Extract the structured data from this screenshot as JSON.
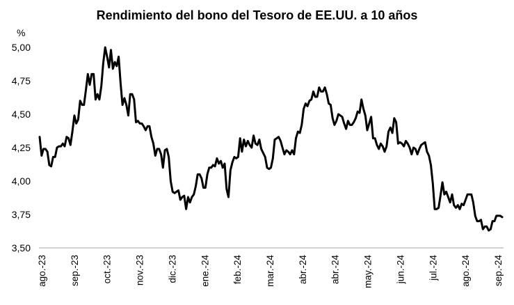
{
  "chart_data": {
    "type": "line",
    "title": "Rendimiento del bono del Tesoro de EE.UU. a 10 años",
    "y_unit": "%",
    "ylim": [
      3.5,
      5.0
    ],
    "y_ticks": [
      "3,50",
      "3,75",
      "4,00",
      "4,25",
      "4,50",
      "4,75",
      "5,00"
    ],
    "x_ticks": [
      "ago.-23",
      "sep.-23",
      "oct.-23",
      "nov.-23",
      "dic.-23",
      "ene.-24",
      "feb.-24",
      "mar.-24",
      "abr.-24",
      "abr.-24",
      "may.-24",
      "jun.-24",
      "jul.-24",
      "ago.-24",
      "sep.-24"
    ],
    "grid": false,
    "legend": "none",
    "series": [
      {
        "color": "#000000",
        "values": [
          4.33,
          4.19,
          4.24,
          4.24,
          4.22,
          4.12,
          4.11,
          4.18,
          4.18,
          4.25,
          4.26,
          4.26,
          4.28,
          4.26,
          4.33,
          4.32,
          4.27,
          4.37,
          4.49,
          4.43,
          4.46,
          4.6,
          4.57,
          4.57,
          4.68,
          4.8,
          4.72,
          4.8,
          4.8,
          4.61,
          4.65,
          4.61,
          4.71,
          4.88,
          5.0,
          4.93,
          4.85,
          4.98,
          4.84,
          4.89,
          4.86,
          4.93,
          4.73,
          4.57,
          4.62,
          4.57,
          4.49,
          4.65,
          4.65,
          4.61,
          4.44,
          4.45,
          4.43,
          4.43,
          4.41,
          4.38,
          4.41,
          4.41,
          4.33,
          4.28,
          4.19,
          4.24,
          4.24,
          4.2,
          4.1,
          4.23,
          4.24,
          4.18,
          4.0,
          3.92,
          3.91,
          3.92,
          3.93,
          3.86,
          3.88,
          3.89,
          3.79,
          3.88,
          3.84,
          3.88,
          3.9,
          3.96,
          4.05,
          4.05,
          4.02,
          3.95,
          3.95,
          4.05,
          4.1,
          4.1,
          4.12,
          4.11,
          4.17,
          4.13,
          4.15,
          4.1,
          4.13,
          3.94,
          3.88,
          4.08,
          4.14,
          4.18,
          4.17,
          4.18,
          4.32,
          4.22,
          4.31,
          4.26,
          4.3,
          4.27,
          4.25,
          4.34,
          4.28,
          4.27,
          4.31,
          4.24,
          4.21,
          4.18,
          4.1,
          4.09,
          4.1,
          4.17,
          4.31,
          4.32,
          4.33,
          4.3,
          4.25,
          4.2,
          4.23,
          4.22,
          4.2,
          4.23,
          4.2,
          4.32,
          4.37,
          4.36,
          4.42,
          4.54,
          4.58,
          4.56,
          4.6,
          4.61,
          4.67,
          4.63,
          4.63,
          4.7,
          4.67,
          4.67,
          4.7,
          4.65,
          4.58,
          4.57,
          4.47,
          4.42,
          4.45,
          4.5,
          4.49,
          4.48,
          4.43,
          4.39,
          4.45,
          4.42,
          4.42,
          4.44,
          4.47,
          4.52,
          4.51,
          4.61,
          4.54,
          4.49,
          4.38,
          4.43,
          4.48,
          4.32,
          4.32,
          4.27,
          4.24,
          4.28,
          4.26,
          4.22,
          4.26,
          4.37,
          4.4,
          4.36,
          4.47,
          4.44,
          4.28,
          4.29,
          4.28,
          4.26,
          4.3,
          4.28,
          4.25,
          4.2,
          4.25,
          4.24,
          4.2,
          4.24,
          4.27,
          4.28,
          4.29,
          4.22,
          4.19,
          4.12,
          3.98,
          3.79,
          3.79,
          3.8,
          3.89,
          3.99,
          3.9,
          3.92,
          3.88,
          3.84,
          3.9,
          3.82,
          3.8,
          3.82,
          3.79,
          3.83,
          3.82,
          3.86,
          3.9,
          3.9,
          3.9,
          3.84,
          3.74,
          3.7,
          3.7,
          3.71,
          3.64,
          3.66,
          3.66,
          3.63,
          3.64,
          3.7,
          3.7,
          3.74,
          3.74,
          3.74,
          3.73
        ]
      }
    ]
  }
}
